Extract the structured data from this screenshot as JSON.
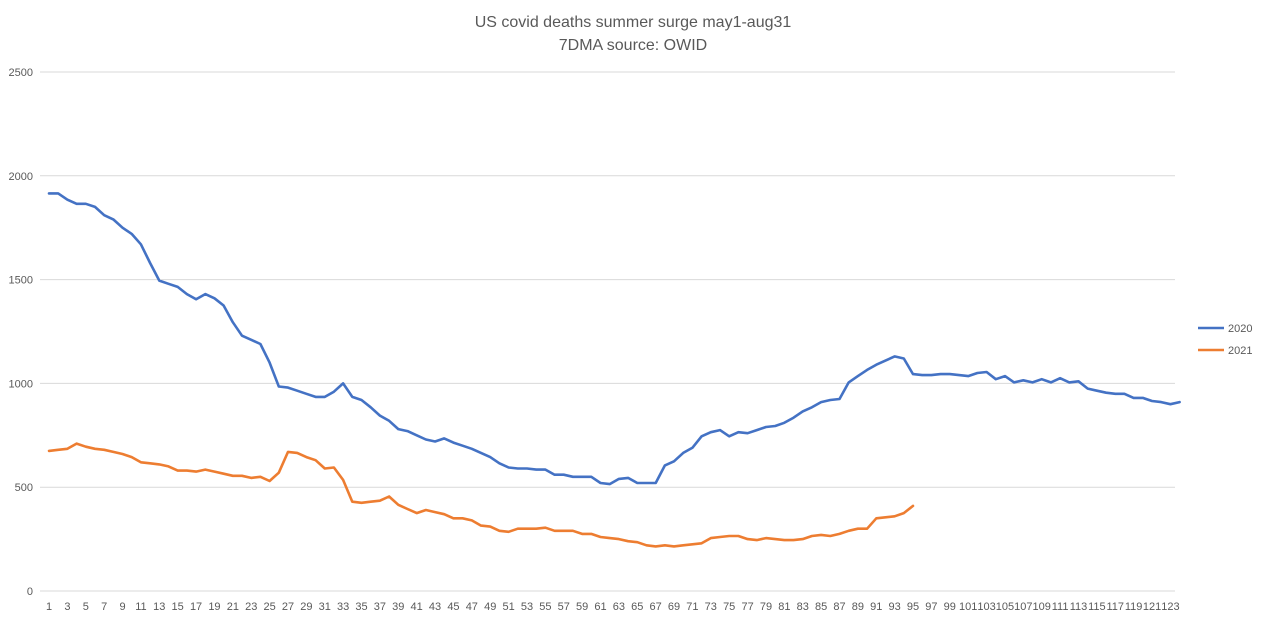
{
  "chart_data": {
    "type": "line",
    "title": "US covid deaths summer surge may1-aug31",
    "subtitle": "7DMA source: OWID",
    "xlabel": "",
    "ylabel": "",
    "ylim": [
      0,
      2500
    ],
    "yticks": [
      0,
      500,
      1000,
      1500,
      2000,
      2500
    ],
    "x_range": [
      1,
      123
    ],
    "x_tick_labels": [
      "1",
      "3",
      "5",
      "7",
      "9",
      "11",
      "13",
      "15",
      "17",
      "19",
      "21",
      "23",
      "25",
      "27",
      "29",
      "31",
      "33",
      "35",
      "37",
      "39",
      "41",
      "43",
      "45",
      "47",
      "49",
      "51",
      "53",
      "55",
      "57",
      "59",
      "61",
      "63",
      "65",
      "67",
      "69",
      "71",
      "73",
      "75",
      "77",
      "79",
      "81",
      "83",
      "85",
      "87",
      "89",
      "91",
      "93",
      "95",
      "97",
      "99",
      "101",
      "103",
      "105",
      "107",
      "109",
      "111",
      "113",
      "115",
      "117",
      "119",
      "121",
      "123"
    ],
    "grid": true,
    "legend_position": "right",
    "series": [
      {
        "name": "2020",
        "color": "#4472C4",
        "values": [
          1915,
          1915,
          1885,
          1865,
          1865,
          1850,
          1810,
          1790,
          1750,
          1720,
          1670,
          1580,
          1495,
          1480,
          1465,
          1430,
          1405,
          1430,
          1410,
          1375,
          1295,
          1230,
          1210,
          1190,
          1100,
          985,
          980,
          965,
          950,
          935,
          935,
          960,
          1000,
          935,
          920,
          885,
          845,
          820,
          780,
          770,
          750,
          730,
          720,
          735,
          715,
          700,
          685,
          665,
          645,
          615,
          595,
          590,
          590,
          585,
          585,
          560,
          560,
          550,
          550,
          550,
          520,
          515,
          540,
          545,
          520,
          520,
          520,
          605,
          625,
          665,
          690,
          745,
          765,
          775,
          745,
          765,
          760,
          775,
          790,
          795,
          810,
          835,
          865,
          885,
          910,
          920,
          925,
          1005,
          1035,
          1065,
          1090,
          1110,
          1130,
          1120,
          1045,
          1040,
          1040,
          1045,
          1045,
          1040,
          1035,
          1050,
          1055,
          1020,
          1035,
          1005,
          1015,
          1005,
          1020,
          1005,
          1025,
          1005,
          1010,
          975,
          965,
          955,
          950,
          950,
          930,
          930,
          915,
          910,
          900,
          910
        ]
      },
      {
        "name": "2021",
        "color": "#ED7D31",
        "values": [
          675,
          680,
          685,
          710,
          695,
          685,
          680,
          670,
          660,
          645,
          620,
          615,
          610,
          600,
          580,
          580,
          575,
          585,
          575,
          565,
          555,
          555,
          545,
          550,
          530,
          570,
          670,
          665,
          645,
          630,
          590,
          595,
          535,
          430,
          425,
          430,
          435,
          455,
          415,
          395,
          375,
          390,
          380,
          370,
          350,
          350,
          340,
          315,
          310,
          290,
          285,
          300,
          300,
          300,
          305,
          290,
          290,
          290,
          275,
          275,
          260,
          255,
          250,
          240,
          235,
          220,
          215,
          220,
          215,
          220,
          225,
          230,
          255,
          260,
          265,
          265,
          250,
          245,
          255,
          250,
          245,
          245,
          250,
          265,
          270,
          265,
          275,
          290,
          300,
          300,
          350,
          355,
          360,
          375,
          410
        ]
      }
    ]
  }
}
